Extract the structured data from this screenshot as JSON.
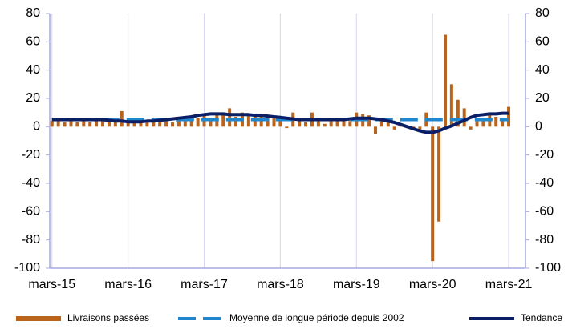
{
  "chart_data": {
    "type": "combo",
    "categories": [
      "mars-15",
      null,
      null,
      null,
      null,
      null,
      null,
      null,
      null,
      null,
      null,
      null,
      "mars-16",
      null,
      null,
      null,
      null,
      null,
      null,
      null,
      null,
      null,
      null,
      null,
      "mars-17",
      null,
      null,
      null,
      null,
      null,
      null,
      null,
      null,
      null,
      null,
      null,
      "mars-18",
      null,
      null,
      null,
      null,
      null,
      null,
      null,
      null,
      null,
      null,
      null,
      "mars-19",
      null,
      null,
      null,
      null,
      null,
      null,
      null,
      null,
      null,
      null,
      null,
      "mars-20",
      null,
      null,
      null,
      null,
      null,
      null,
      null,
      null,
      null,
      null,
      null,
      "mars-21",
      null,
      null
    ],
    "series": [
      {
        "name": "Livraisons passées",
        "type": "bar",
        "color": "#b8641c",
        "values": [
          4,
          4,
          3,
          4,
          3,
          4,
          3,
          4,
          5,
          4,
          4,
          11,
          4,
          3,
          3,
          4,
          3,
          5,
          4,
          3,
          5,
          6,
          4,
          6,
          8,
          5,
          9,
          10,
          13,
          7,
          10,
          9,
          7,
          9,
          8,
          6,
          5,
          -1,
          10,
          5,
          3,
          10,
          4,
          2,
          5,
          5,
          6,
          4,
          10,
          9,
          8,
          -5,
          6,
          3,
          -2,
          2,
          -1,
          -2,
          -2,
          10,
          -95,
          -67,
          65,
          30,
          19,
          13,
          -2,
          5,
          5,
          10,
          7,
          5,
          14,
          null,
          null
        ]
      },
      {
        "name": "Moyenne de longue période depuis 2002",
        "type": "line",
        "dashed": true,
        "color": "#1f86d0",
        "values": [
          5,
          5,
          5,
          5,
          5,
          5,
          5,
          5,
          5,
          5,
          5,
          5,
          5,
          5,
          5,
          5,
          5,
          5,
          5,
          5,
          5,
          5,
          5,
          5,
          5,
          5,
          5,
          5,
          5,
          5,
          5,
          5,
          5,
          5,
          5,
          5,
          5,
          5,
          5,
          5,
          5,
          5,
          5,
          5,
          5,
          5,
          5,
          5,
          5,
          5,
          5,
          5,
          5,
          5,
          5,
          5,
          5,
          5,
          5,
          5,
          5,
          5,
          5,
          5,
          5,
          5,
          5,
          5,
          5,
          5,
          5,
          5,
          5,
          null,
          null
        ]
      },
      {
        "name": "Tendance",
        "type": "line",
        "color": "#0b1f66",
        "values": [
          5,
          5,
          5,
          5,
          5,
          5,
          5,
          5,
          5,
          4.5,
          4,
          4,
          3.5,
          3.5,
          3.5,
          4,
          4,
          4.5,
          5,
          5.5,
          6,
          6.5,
          7,
          8,
          8.5,
          9,
          9,
          9,
          8.5,
          8.5,
          8.5,
          8.5,
          8,
          8,
          7.5,
          7,
          6.5,
          6,
          5.5,
          5,
          5,
          5,
          5,
          5,
          5,
          5,
          5,
          5.5,
          6,
          6,
          6,
          5.5,
          5,
          4,
          3,
          1.5,
          0,
          -1.5,
          -3,
          -4,
          -4,
          -3,
          -1,
          0.5,
          2.5,
          4.5,
          6.5,
          8,
          8.5,
          9,
          9,
          9.5,
          9.5,
          null,
          null
        ]
      }
    ],
    "ylim": [
      -100,
      80
    ],
    "yticks": [
      -100,
      -80,
      -60,
      -40,
      -20,
      0,
      20,
      40,
      60,
      80
    ],
    "y2lim": [
      -100,
      80
    ],
    "y2ticks": [
      -100,
      -80,
      -60,
      -40,
      -20,
      0,
      20,
      40,
      60,
      80
    ],
    "grid": true
  }
}
